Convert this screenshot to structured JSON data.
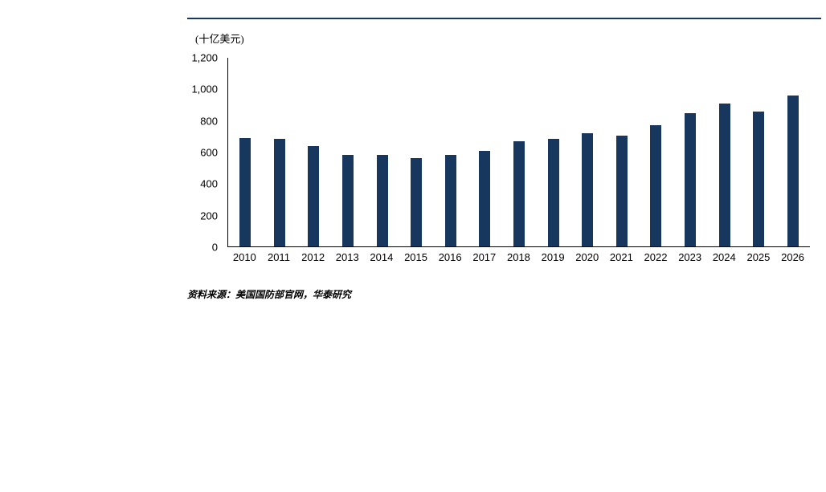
{
  "chart": {
    "unit_label": "(十亿美元)",
    "source_note": "资料来源：美国国防部官网，华泰研究"
  },
  "chart_data": {
    "type": "bar",
    "title": "",
    "xlabel": "",
    "ylabel": "十亿美元",
    "categories": [
      "2010",
      "2011",
      "2012",
      "2013",
      "2014",
      "2015",
      "2016",
      "2017",
      "2018",
      "2019",
      "2020",
      "2021",
      "2022",
      "2023",
      "2024",
      "2025",
      "2026"
    ],
    "values": [
      690,
      686,
      640,
      580,
      580,
      560,
      580,
      606,
      671,
      686,
      722,
      703,
      773,
      849,
      910,
      858,
      960
    ],
    "ylim": [
      0,
      1200
    ],
    "yticks": [
      0,
      200,
      400,
      600,
      800,
      1000,
      1200
    ],
    "ytick_labels": [
      "0",
      "200",
      "400",
      "600",
      "800",
      "1,000",
      "1,200"
    ],
    "bar_color": "#17375E",
    "grid": false,
    "legend": "none"
  }
}
